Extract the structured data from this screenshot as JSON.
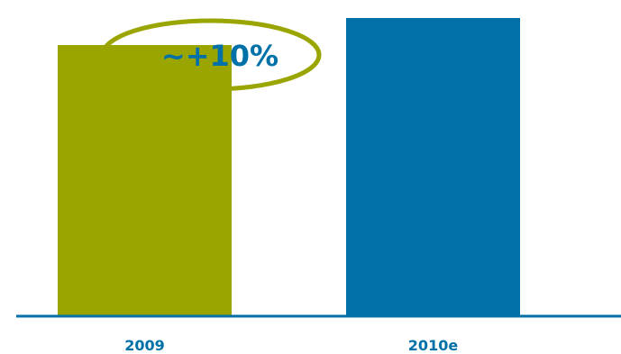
{
  "chart_data": {
    "type": "bar",
    "categories": [
      "2009",
      "2010e"
    ],
    "values": [
      100,
      110
    ],
    "ylim": [
      0,
      120
    ],
    "grid": false,
    "colors": {
      "bars": [
        "#9aa500",
        "#0071a8"
      ],
      "axis": "#0071a8",
      "label": "#0071a8"
    },
    "annotation": {
      "text": "~+10%",
      "text_color": "#0071a8",
      "ellipse_color": "#9aa500"
    }
  }
}
